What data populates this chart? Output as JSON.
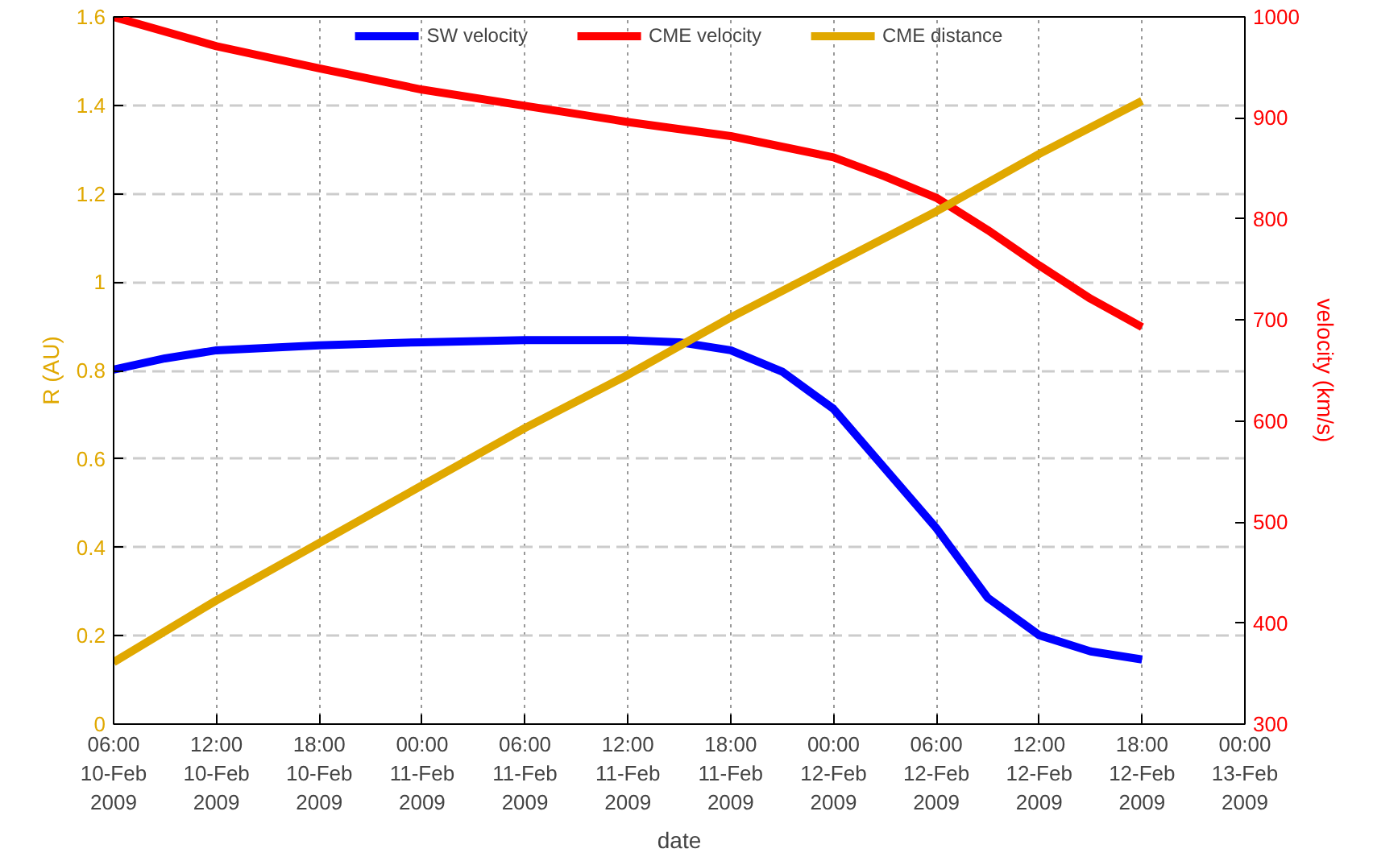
{
  "chart_data": {
    "type": "line",
    "xlabel": "date",
    "ylabel": "R (AU)",
    "y2label": "velocity (km/s)",
    "x": [
      "2009-02-10T06:00",
      "2009-02-10T12:00",
      "2009-02-10T18:00",
      "2009-02-11T00:00",
      "2009-02-11T06:00",
      "2009-02-11T12:00",
      "2009-02-11T18:00",
      "2009-02-12T00:00",
      "2009-02-12T06:00",
      "2009-02-12T12:00",
      "2009-02-12T18:00"
    ],
    "series": [
      {
        "name": "SW velocity",
        "color": "#0000ff",
        "axis": "y2",
        "x": [
          "2009-02-10T06:00",
          "2009-02-10T09:00",
          "2009-02-10T12:00",
          "2009-02-10T18:00",
          "2009-02-11T00:00",
          "2009-02-11T06:00",
          "2009-02-11T12:00",
          "2009-02-11T15:00",
          "2009-02-11T18:00",
          "2009-02-11T21:00",
          "2009-02-12T00:00",
          "2009-02-12T03:00",
          "2009-02-12T06:00",
          "2009-02-12T09:00",
          "2009-02-12T12:00",
          "2009-02-12T15:00",
          "2009-02-12T18:00"
        ],
        "values": [
          651,
          662,
          670,
          675,
          678,
          680,
          680,
          678,
          670,
          649,
          612,
          553,
          494,
          425,
          388,
          372,
          364
        ]
      },
      {
        "name": "CME velocity",
        "color": "#ff0000",
        "axis": "y2",
        "x": [
          "2009-02-10T06:00",
          "2009-02-10T12:00",
          "2009-02-10T18:00",
          "2009-02-11T00:00",
          "2009-02-11T06:00",
          "2009-02-11T12:00",
          "2009-02-11T18:00",
          "2009-02-12T00:00",
          "2009-02-12T03:00",
          "2009-02-12T06:00",
          "2009-02-12T09:00",
          "2009-02-12T12:00",
          "2009-02-12T15:00",
          "2009-02-12T18:00"
        ],
        "values": [
          1000,
          971,
          949,
          928,
          912,
          896,
          882,
          861,
          842,
          821,
          789,
          754,
          721,
          693
        ]
      },
      {
        "name": "CME distance",
        "color": "#e0a800",
        "values": [
          0.14,
          0.28,
          0.41,
          0.54,
          0.67,
          0.79,
          0.92,
          1.04,
          1.16,
          1.29,
          1.41
        ]
      }
    ],
    "xlim": [
      "2009-02-10T06:00",
      "2009-02-13T00:00"
    ],
    "xticks": [
      {
        "value": "2009-02-10T06:00",
        "label": "06:00\n10-Feb\n2009"
      },
      {
        "value": "2009-02-10T12:00",
        "label": "12:00\n10-Feb\n2009"
      },
      {
        "value": "2009-02-10T18:00",
        "label": "18:00\n10-Feb\n2009"
      },
      {
        "value": "2009-02-11T00:00",
        "label": "00:00\n11-Feb\n2009"
      },
      {
        "value": "2009-02-11T06:00",
        "label": "06:00\n11-Feb\n2009"
      },
      {
        "value": "2009-02-11T12:00",
        "label": "12:00\n11-Feb\n2009"
      },
      {
        "value": "2009-02-11T18:00",
        "label": "18:00\n11-Feb\n2009"
      },
      {
        "value": "2009-02-12T00:00",
        "label": "00:00\n12-Feb\n2009"
      },
      {
        "value": "2009-02-12T06:00",
        "label": "06:00\n12-Feb\n2009"
      },
      {
        "value": "2009-02-12T12:00",
        "label": "12:00\n12-Feb\n2009"
      },
      {
        "value": "2009-02-12T18:00",
        "label": "18:00\n12-Feb\n2009"
      },
      {
        "value": "2009-02-13T00:00",
        "label": "00:00\n13-Feb\n2009"
      }
    ],
    "ylim": [
      0,
      1.6
    ],
    "yticks": [
      0,
      0.2,
      0.4,
      0.6,
      0.8,
      1,
      1.2,
      1.4,
      1.6
    ],
    "y2lim": [
      300,
      1000
    ],
    "y2ticks": [
      300,
      400,
      500,
      600,
      700,
      800,
      900,
      1000
    ],
    "grid": true,
    "legend": "top",
    "marker": "none",
    "line_style": "solid"
  }
}
